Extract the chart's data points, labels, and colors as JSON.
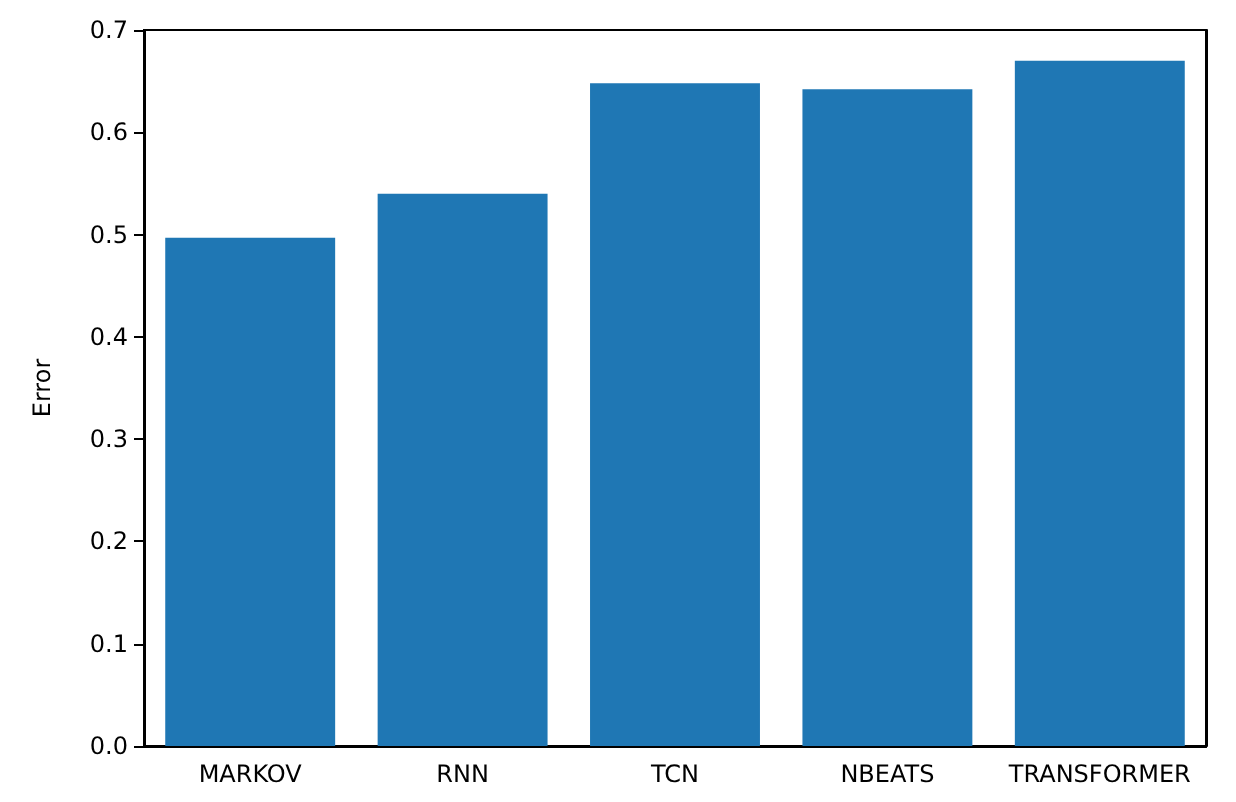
{
  "chart_data": {
    "type": "bar",
    "ylabel": "Error",
    "categories": [
      "MARKOV",
      "RNN",
      "TCN",
      "NBEATS",
      "TRANSFORMER"
    ],
    "values": [
      0.497,
      0.54,
      0.648,
      0.642,
      0.67
    ],
    "color": "#1f77b4",
    "ylim": [
      0,
      0.7
    ],
    "yticks": [
      {
        "value": 0,
        "label": "0.0"
      },
      0.1,
      0.2,
      0.3,
      0.4,
      0.5,
      0.6,
      0.7
    ],
    "grid": false
  }
}
